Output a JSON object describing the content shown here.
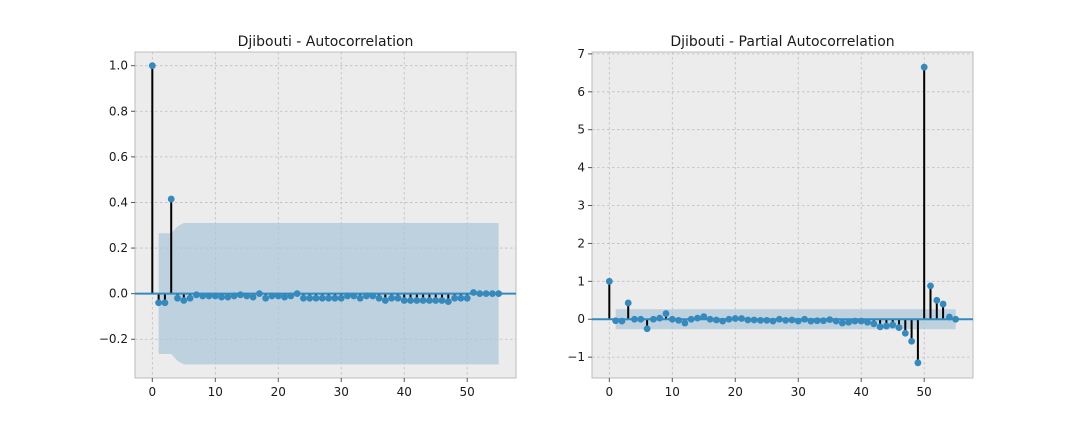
{
  "colors": {
    "marker": "#348abd",
    "stem": "#000000",
    "band": "#a9c6da",
    "axes_bg": "#ececec"
  },
  "chart_data": [
    {
      "type": "stem",
      "title": "Djibouti - Autocorrelation",
      "xlim": [
        -2.75,
        57.75
      ],
      "ylim": [
        -0.37,
        1.06
      ],
      "xticks": [
        0,
        10,
        20,
        30,
        40,
        50
      ],
      "xtick_labels": [
        "0",
        "10",
        "20",
        "30",
        "40",
        "50"
      ],
      "yticks": [
        -0.2,
        0.0,
        0.2,
        0.4,
        0.6,
        0.8,
        1.0
      ],
      "ytick_labels": [
        "−0.2",
        "0.0",
        "0.2",
        "0.4",
        "0.6",
        "0.8",
        "1.0"
      ],
      "grid": true,
      "x": [
        0,
        1,
        2,
        3,
        4,
        5,
        6,
        7,
        8,
        9,
        10,
        11,
        12,
        13,
        14,
        15,
        16,
        17,
        18,
        19,
        20,
        21,
        22,
        23,
        24,
        25,
        26,
        27,
        28,
        29,
        30,
        31,
        32,
        33,
        34,
        35,
        36,
        37,
        38,
        39,
        40,
        41,
        42,
        43,
        44,
        45,
        46,
        47,
        48,
        49,
        50,
        51,
        52,
        53,
        54,
        55
      ],
      "values": [
        1.0,
        -0.04,
        -0.04,
        0.415,
        -0.02,
        -0.03,
        -0.02,
        -0.005,
        -0.01,
        -0.01,
        -0.01,
        -0.015,
        -0.015,
        -0.01,
        -0.005,
        -0.01,
        -0.015,
        0.0,
        -0.02,
        -0.01,
        -0.01,
        -0.015,
        -0.01,
        0.0,
        -0.02,
        -0.02,
        -0.02,
        -0.02,
        -0.02,
        -0.02,
        -0.02,
        -0.01,
        -0.01,
        -0.02,
        -0.01,
        -0.01,
        -0.02,
        -0.03,
        -0.02,
        -0.02,
        -0.03,
        -0.03,
        -0.03,
        -0.03,
        -0.03,
        -0.03,
        -0.03,
        -0.035,
        -0.02,
        -0.02,
        -0.02,
        0.005,
        0.0,
        0.0,
        0.0,
        0.0
      ],
      "confint": {
        "lags": [
          1,
          2,
          3,
          4,
          5,
          55
        ],
        "upper": [
          0.265,
          0.265,
          0.265,
          0.295,
          0.31,
          0.31
        ],
        "lower": [
          -0.265,
          -0.265,
          -0.265,
          -0.295,
          -0.31,
          -0.31
        ]
      }
    },
    {
      "type": "stem",
      "title": "Djibouti - Partial Autocorrelation",
      "xlim": [
        -2.75,
        57.75
      ],
      "ylim": [
        -1.55,
        7.05
      ],
      "xticks": [
        0,
        10,
        20,
        30,
        40,
        50
      ],
      "xtick_labels": [
        "0",
        "10",
        "20",
        "30",
        "40",
        "50"
      ],
      "yticks": [
        -1,
        0,
        1,
        2,
        3,
        4,
        5,
        6,
        7
      ],
      "ytick_labels": [
        "−1",
        "0",
        "1",
        "2",
        "3",
        "4",
        "5",
        "6",
        "7"
      ],
      "grid": true,
      "x": [
        0,
        1,
        2,
        3,
        4,
        5,
        6,
        7,
        8,
        9,
        10,
        11,
        12,
        13,
        14,
        15,
        16,
        17,
        18,
        19,
        20,
        21,
        22,
        23,
        24,
        25,
        26,
        27,
        28,
        29,
        30,
        31,
        32,
        33,
        34,
        35,
        36,
        37,
        38,
        39,
        40,
        41,
        42,
        43,
        44,
        45,
        46,
        47,
        48,
        49,
        50,
        51,
        52,
        53,
        54,
        55
      ],
      "values": [
        1.0,
        -0.04,
        -0.05,
        0.43,
        0.0,
        0.0,
        -0.25,
        0.0,
        0.03,
        0.15,
        0.0,
        -0.03,
        -0.1,
        0.0,
        0.03,
        0.07,
        0.0,
        -0.02,
        -0.05,
        0.0,
        0.02,
        0.02,
        -0.02,
        -0.02,
        -0.03,
        -0.03,
        -0.05,
        0.0,
        -0.03,
        -0.02,
        -0.05,
        0.0,
        -0.05,
        -0.04,
        -0.04,
        -0.01,
        -0.05,
        -0.1,
        -0.08,
        -0.05,
        -0.05,
        -0.08,
        -0.12,
        -0.2,
        -0.18,
        -0.15,
        -0.22,
        -0.37,
        -0.58,
        -1.15,
        6.65,
        0.88,
        0.5,
        0.4,
        0.06,
        0.0
      ],
      "confint": {
        "lags": [
          1,
          55
        ],
        "upper": [
          0.265,
          0.265
        ],
        "lower": [
          -0.265,
          -0.265
        ]
      }
    }
  ]
}
